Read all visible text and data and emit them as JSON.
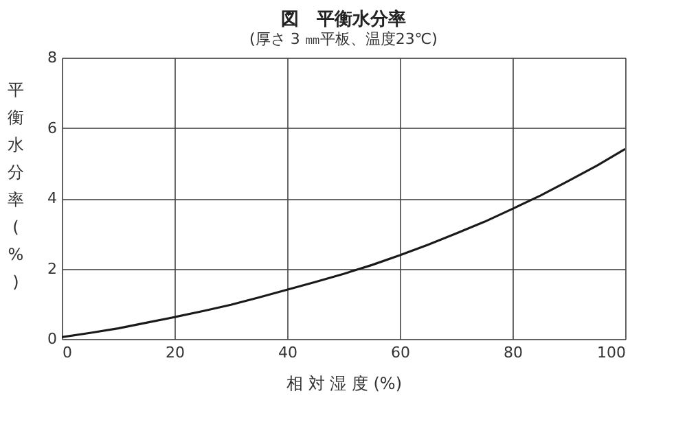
{
  "chart_data": {
    "type": "line",
    "title": "図　平衡水分率",
    "subtitle": "(厚さ 3 ㎜平板、温度23℃)",
    "xlabel": "相 対 湿 度 (%)",
    "ylabel": "平衡水分率(%)",
    "x": [
      0,
      5,
      10,
      15,
      20,
      25,
      30,
      35,
      40,
      45,
      50,
      55,
      60,
      65,
      70,
      75,
      80,
      85,
      90,
      95,
      100
    ],
    "series": [
      {
        "color": "#1a1a1a",
        "values": [
          0.05,
          0.17,
          0.3,
          0.46,
          0.62,
          0.79,
          0.97,
          1.18,
          1.4,
          1.62,
          1.85,
          2.1,
          2.38,
          2.68,
          3.0,
          3.33,
          3.7,
          4.08,
          4.5,
          4.93,
          5.4
        ]
      }
    ],
    "xlim": [
      0,
      100
    ],
    "xticks": [
      0,
      20,
      40,
      60,
      80,
      100
    ],
    "ylim": [
      0,
      8
    ],
    "yticks": [
      0,
      2,
      4,
      6,
      8
    ],
    "grid": true,
    "marker": "none",
    "line_style": "solid"
  }
}
